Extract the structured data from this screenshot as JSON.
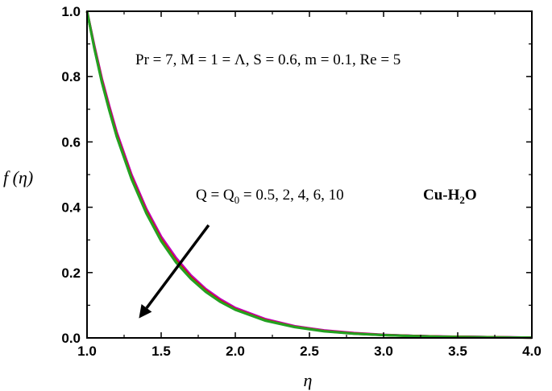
{
  "chart_data": {
    "type": "line",
    "xlabel": "η",
    "ylabel": "f (η)",
    "xlim": [
      1.0,
      4.0
    ],
    "ylim": [
      0.0,
      1.0
    ],
    "x_ticks": [
      "1.0",
      "1.5",
      "2.0",
      "2.5",
      "3.0",
      "3.5",
      "4.0"
    ],
    "y_ticks": [
      "0.0",
      "0.2",
      "0.4",
      "0.6",
      "0.8",
      "1.0"
    ],
    "grid": false,
    "annotations": {
      "params": "Pr = 7, M = 1 = Λ, S = 0.6, m = 0.1, Re = 5",
      "q_label": "Q = Q",
      "q_sub": "0",
      "q_values": " = 0.5, 2, 4, 6, 10",
      "nanofluid": "Cu-H",
      "nanofluid_sub": "2",
      "nanofluid_end": "O"
    },
    "arrow": {
      "from": [
        1.82,
        0.345
      ],
      "to": [
        1.35,
        0.06
      ],
      "color": "#000000"
    },
    "x": [
      1.0,
      1.05,
      1.1,
      1.15,
      1.2,
      1.3,
      1.4,
      1.5,
      1.6,
      1.7,
      1.8,
      1.9,
      2.0,
      2.2,
      2.4,
      2.6,
      2.8,
      3.0,
      3.2,
      3.4,
      3.6,
      3.8,
      4.0
    ],
    "series": [
      {
        "color": "#0000cc",
        "values": [
          1.0,
          0.89,
          0.79,
          0.705,
          0.625,
          0.495,
          0.39,
          0.305,
          0.24,
          0.188,
          0.147,
          0.115,
          0.09,
          0.056,
          0.035,
          0.022,
          0.014,
          0.009,
          0.006,
          0.004,
          0.003,
          0.002,
          0.001
        ]
      },
      {
        "color": "#c000c0",
        "values": [
          1.0,
          0.893,
          0.794,
          0.71,
          0.63,
          0.5,
          0.395,
          0.31,
          0.245,
          0.192,
          0.15,
          0.118,
          0.092,
          0.058,
          0.036,
          0.023,
          0.015,
          0.0095,
          0.006,
          0.004,
          0.003,
          0.002,
          0.001
        ]
      },
      {
        "color": "#cc0000",
        "values": [
          1.0,
          0.888,
          0.788,
          0.702,
          0.622,
          0.492,
          0.387,
          0.302,
          0.237,
          0.186,
          0.145,
          0.113,
          0.088,
          0.055,
          0.034,
          0.021,
          0.014,
          0.009,
          0.006,
          0.004,
          0.003,
          0.002,
          0.001
        ]
      },
      {
        "color": "#808000",
        "values": [
          1.0,
          0.886,
          0.785,
          0.699,
          0.619,
          0.489,
          0.384,
          0.299,
          0.234,
          0.183,
          0.143,
          0.111,
          0.087,
          0.054,
          0.034,
          0.021,
          0.013,
          0.0085,
          0.0055,
          0.0035,
          0.0025,
          0.0015,
          0.001
        ]
      },
      {
        "color": "#22a022",
        "values": [
          1.0,
          0.884,
          0.782,
          0.696,
          0.616,
          0.486,
          0.381,
          0.296,
          0.231,
          0.181,
          0.141,
          0.11,
          0.086,
          0.053,
          0.033,
          0.02,
          0.013,
          0.0085,
          0.0055,
          0.0035,
          0.0025,
          0.0015,
          0.001
        ]
      }
    ]
  }
}
